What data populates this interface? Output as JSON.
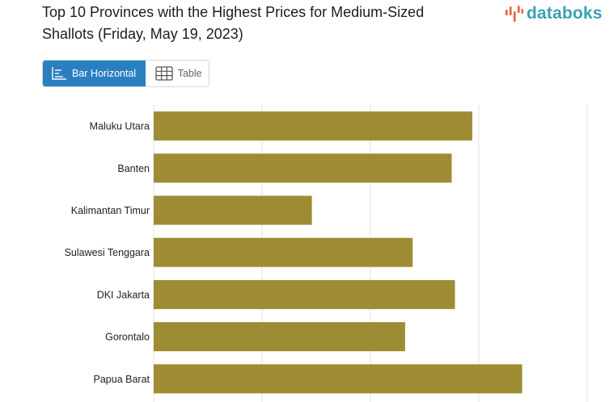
{
  "header": {
    "title": "Top 10 Provinces with the Highest Prices for Medium-Sized Shallots (Friday, May 19, 2023)",
    "logo_text": "databoks"
  },
  "view_toggle": {
    "bar_label": "Bar Horizontal",
    "table_label": "Table"
  },
  "colors": {
    "bar": "#9e8c34",
    "active_tab": "#2a7fc1",
    "logo": "#3aa0b4",
    "logo_mark": "#e8623a"
  },
  "chart_data": {
    "type": "bar",
    "orientation": "horizontal",
    "categories": [
      "Maluku Utara",
      "Banten",
      "Kalimantan Timur",
      "Sulawesi Tenggara",
      "DKI Jakarta",
      "Gorontalo",
      "Papua Barat"
    ],
    "values": [
      59400,
      57500,
      44600,
      53900,
      57800,
      53200,
      64000
    ],
    "xlim": [
      30000,
      70000
    ],
    "grid": true
  }
}
